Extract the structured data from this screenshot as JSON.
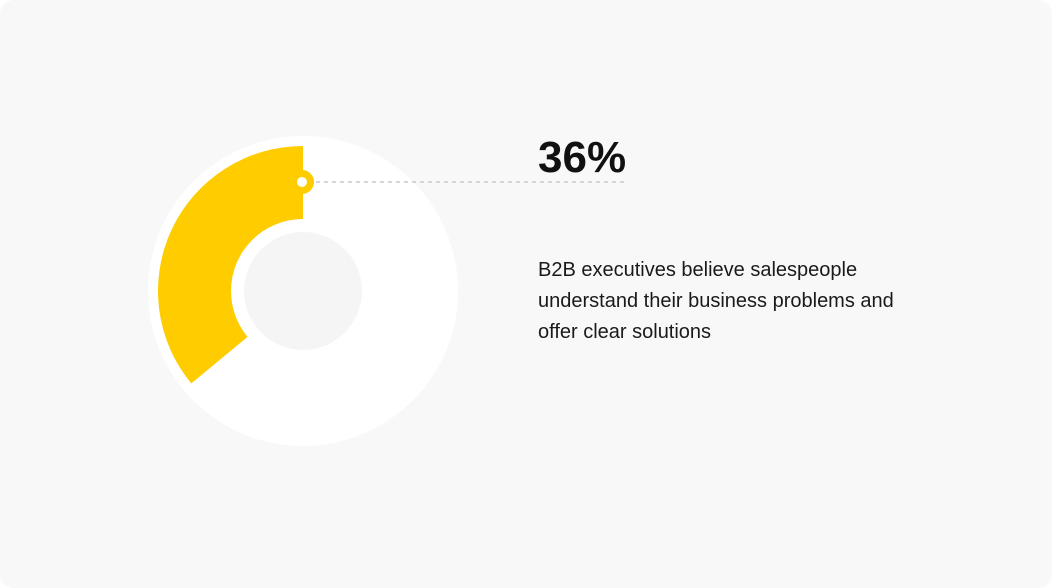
{
  "chart_data": {
    "type": "donut",
    "values": [
      36
    ],
    "value_labels": [
      "36%"
    ],
    "color": "#ffcc00",
    "annotation": "B2B executives believe salespeople understand their business problems and offer clear solutions"
  }
}
